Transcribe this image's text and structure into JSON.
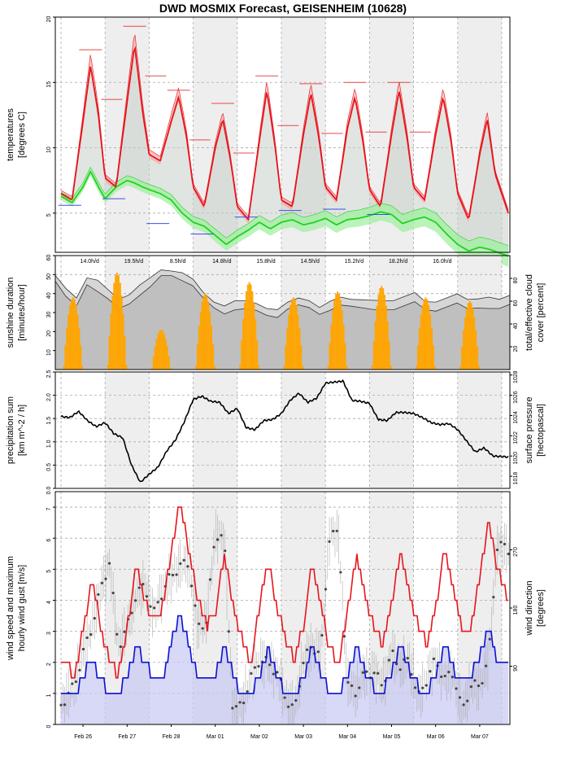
{
  "title": "DWD MOSMIX Forecast, GEISENHEIM (10628)",
  "x_axis": {
    "day_labels": [
      "Feb 26",
      "Feb 27",
      "Feb 28",
      "Mar 01",
      "Mar 02",
      "Mar 03",
      "Mar 04",
      "Mar 05",
      "Mar 06",
      "Mar 07"
    ]
  },
  "colors": {
    "temperature": "#e8141c",
    "dewpoint": "#1ed41e",
    "daily_max": "#e84848",
    "daily_min": "#3c50e6",
    "sunshine": "#ffa500",
    "wind_speed": "#0a10d2",
    "wind_gust": "#e8141c",
    "night_shade": "#eeeeee"
  },
  "chart_data": [
    {
      "type": "line",
      "panel": "temperature",
      "ylabel": "temperatures\n[degrees C]",
      "ylim": [
        2,
        20
      ],
      "yticks": [
        5,
        10,
        15,
        20
      ],
      "grid": true,
      "daily_max_temps": [
        17.5,
        19.3,
        14.4,
        13.4,
        15.5,
        14.9,
        15.0,
        15.0
      ],
      "daily_min_temps": [
        5.6,
        6.1,
        4.2,
        3.4,
        4.7,
        5.2,
        5.3,
        4.9
      ],
      "series": [
        {
          "name": "temperature",
          "x": [
            0,
            0.25,
            0.5,
            0.67,
            0.85,
            1.0,
            1.25,
            1.5,
            1.67,
            1.85,
            2.0,
            2.25,
            2.5,
            2.67,
            2.85,
            3.0,
            3.25,
            3.5,
            3.67,
            3.85,
            4.0,
            4.25,
            4.5,
            4.67,
            4.85,
            5.0,
            5.25,
            5.5,
            5.67,
            5.85,
            6.0,
            6.25,
            6.5,
            6.67,
            6.85,
            7.0,
            7.25,
            7.5,
            7.67,
            7.85,
            8.0,
            8.25,
            8.5,
            8.67,
            8.85,
            9.0,
            9.25,
            9.5,
            9.67,
            9.85,
            10.15
          ],
          "values": [
            6.5,
            6.0,
            12.0,
            16.3,
            12.5,
            7.7,
            7.0,
            13.5,
            17.9,
            12.8,
            9.5,
            9.0,
            12.0,
            13.9,
            10.8,
            7.0,
            5.5,
            10.0,
            12.2,
            9.0,
            5.5,
            4.5,
            10.5,
            14.4,
            10.3,
            6.0,
            5.5,
            11.0,
            14.2,
            10.8,
            7.0,
            6.0,
            11.5,
            13.9,
            10.5,
            6.8,
            5.5,
            11.0,
            14.4,
            10.8,
            7.0,
            6.0,
            11.0,
            13.9,
            10.5,
            6.5,
            4.5,
            9.5,
            12.2,
            8.0,
            5.0
          ]
        },
        {
          "name": "dewpoint",
          "x": [
            0,
            0.25,
            0.5,
            0.67,
            0.85,
            1.0,
            1.25,
            1.5,
            1.67,
            1.85,
            2.0,
            2.25,
            2.5,
            2.75,
            3.0,
            3.25,
            3.5,
            3.75,
            4.0,
            4.25,
            4.5,
            4.75,
            5.0,
            5.25,
            5.5,
            5.75,
            6.0,
            6.25,
            6.5,
            6.75,
            7.0,
            7.25,
            7.5,
            7.75,
            8.0,
            8.25,
            8.5,
            8.75,
            9.0,
            9.25,
            9.5,
            9.75,
            10.15
          ],
          "values": [
            6.3,
            5.8,
            7.0,
            8.2,
            7.0,
            6.1,
            7.0,
            7.5,
            7.3,
            7.0,
            6.8,
            6.5,
            6.0,
            5.0,
            4.3,
            4.0,
            3.3,
            2.6,
            3.2,
            3.7,
            4.3,
            3.8,
            4.3,
            4.5,
            4.1,
            4.3,
            4.6,
            4.1,
            4.5,
            4.6,
            4.8,
            5.1,
            4.9,
            4.2,
            4.5,
            4.7,
            4.3,
            3.4,
            2.6,
            2.1,
            2.4,
            2.2,
            1.7
          ]
        }
      ]
    },
    {
      "type": "bar",
      "panel": "sunshine",
      "ylabel": "sunshine duration\n[minutes/hour]",
      "y2label": "total/effective cloud\ncover [percent]",
      "ylim": [
        0,
        60
      ],
      "yticks": [
        10,
        20,
        30,
        40,
        50,
        60
      ],
      "y2ticks": [
        20,
        40,
        60,
        80
      ],
      "daily_sunshine_labels": [
        "14.0h/d",
        "19.5h/d",
        "8.5h/d",
        "14.8h/d",
        "15.8h/d",
        "14.5h/d",
        "15.2h/d",
        "18.2h/d",
        "16.0h/d"
      ],
      "daily_peak_minutes": [
        38,
        51,
        21,
        40,
        46,
        38,
        41,
        44,
        38,
        36
      ],
      "cloud_total_percent": [
        85,
        72,
        62,
        78,
        80,
        70,
        60,
        68,
        75,
        80,
        85,
        88,
        85,
        78,
        70,
        60,
        55,
        58,
        62,
        58,
        52,
        55,
        60,
        62,
        58,
        56,
        60,
        62,
        64,
        62,
        60,
        58,
        62,
        64,
        66,
        62,
        60,
        62,
        64,
        63,
        62,
        62,
        64,
        66
      ],
      "cloud_effective_percent": [
        80,
        65,
        55,
        72,
        70,
        62,
        52,
        60,
        66,
        72,
        80,
        84,
        78,
        72,
        65,
        55,
        48,
        50,
        55,
        52,
        46,
        48,
        54,
        56,
        52,
        50,
        52,
        55,
        58,
        55,
        52,
        50,
        54,
        56,
        58,
        55,
        52,
        54,
        56,
        55,
        54,
        52,
        56,
        58
      ]
    },
    {
      "type": "line",
      "panel": "pressure",
      "ylabel": "precipitation sum\n[km m^-2 / h]",
      "y2label": "surface pressure\n[hectopascal]",
      "ylim": [
        0,
        2.5
      ],
      "yticks": [
        0.0,
        0.5,
        1.0,
        1.5,
        2.0,
        2.5
      ],
      "y2ticks": [
        1018,
        1020,
        1022,
        1024,
        1026,
        1028
      ],
      "series": [
        {
          "name": "surface pressure",
          "x": [
            0,
            0.2,
            0.4,
            0.6,
            0.8,
            1.0,
            1.2,
            1.4,
            1.6,
            1.8,
            2.0,
            2.2,
            2.4,
            2.6,
            2.8,
            3.0,
            3.2,
            3.4,
            3.6,
            3.8,
            4.0,
            4.2,
            4.4,
            4.6,
            4.8,
            5.0,
            5.2,
            5.4,
            5.6,
            5.8,
            6.0,
            6.2,
            6.4,
            6.6,
            6.8,
            7.0,
            7.2,
            7.4,
            7.6,
            7.8,
            8.0,
            8.2,
            8.4,
            8.6,
            8.8,
            9.0,
            9.2,
            9.4,
            9.6,
            9.8,
            10.15
          ],
          "values": [
            1023.9,
            1023.8,
            1024.4,
            1023.5,
            1022.9,
            1023.3,
            1022.2,
            1021.8,
            1019.1,
            1017.4,
            1018.2,
            1018.9,
            1020.5,
            1021.6,
            1023.4,
            1025.6,
            1025.9,
            1025.4,
            1025.3,
            1024.2,
            1024.7,
            1022.8,
            1022.6,
            1023.5,
            1023.6,
            1024.2,
            1025.5,
            1026.2,
            1025.3,
            1025.7,
            1027.2,
            1027.3,
            1027.4,
            1025.5,
            1025.4,
            1025.2,
            1023.6,
            1023.5,
            1024.3,
            1024.3,
            1024.2,
            1023.8,
            1023.3,
            1023.1,
            1023.2,
            1022.6,
            1021.5,
            1020.4,
            1020.8,
            1020.0,
            1019.9
          ]
        }
      ]
    },
    {
      "type": "line",
      "panel": "wind",
      "ylabel": "wind speed and maximum\nhourly wind gust [m/s]",
      "y2label": "wind direction\n[degrees]",
      "ylim": [
        0,
        7.5
      ],
      "yticks": [
        0,
        1,
        2,
        3,
        4,
        5,
        6,
        7
      ],
      "y2ticks": [
        90,
        180,
        270
      ],
      "series": [
        {
          "name": "wind gust",
          "x": [
            0,
            0.3,
            0.5,
            0.7,
            0.9,
            1.1,
            1.3,
            1.5,
            1.7,
            1.9,
            2.1,
            2.3,
            2.5,
            2.7,
            2.9,
            3.1,
            3.3,
            3.5,
            3.7,
            3.9,
            4.1,
            4.3,
            4.5,
            4.7,
            4.9,
            5.1,
            5.3,
            5.5,
            5.7,
            5.9,
            6.1,
            6.3,
            6.5,
            6.7,
            6.9,
            7.1,
            7.3,
            7.5,
            7.7,
            7.9,
            8.1,
            8.3,
            8.5,
            8.7,
            8.9,
            9.1,
            9.3,
            9.5,
            9.7,
            9.9,
            10.15
          ],
          "values": [
            2.1,
            1.6,
            3.0,
            4.7,
            3.2,
            2.0,
            1.6,
            3.0,
            5.3,
            4.0,
            3.4,
            3.8,
            5.6,
            7.2,
            5.5,
            4.1,
            3.2,
            3.5,
            5.5,
            3.8,
            2.8,
            1.9,
            3.8,
            5.2,
            3.8,
            2.8,
            2.0,
            3.2,
            5.2,
            3.8,
            2.4,
            2.0,
            3.6,
            5.4,
            4.1,
            3.2,
            2.6,
            3.8,
            5.6,
            4.3,
            3.2,
            2.6,
            3.8,
            5.6,
            4.4,
            3.1,
            3.1,
            4.8,
            6.6,
            5.0,
            4.1
          ]
        },
        {
          "name": "wind speed",
          "x": [
            0,
            0.3,
            0.5,
            0.7,
            0.9,
            1.1,
            1.3,
            1.5,
            1.7,
            1.9,
            2.1,
            2.3,
            2.5,
            2.7,
            2.9,
            3.1,
            3.3,
            3.5,
            3.7,
            3.9,
            4.1,
            4.3,
            4.5,
            4.7,
            4.9,
            5.1,
            5.3,
            5.5,
            5.7,
            5.9,
            6.1,
            6.3,
            6.5,
            6.7,
            6.9,
            7.1,
            7.3,
            7.5,
            7.7,
            7.9,
            8.1,
            8.3,
            8.5,
            8.7,
            8.9,
            9.1,
            9.3,
            9.5,
            9.7,
            9.9,
            10.15
          ],
          "values": [
            1.0,
            1.0,
            1.5,
            2.1,
            1.5,
            1.0,
            1.0,
            1.5,
            2.5,
            2.0,
            1.5,
            1.5,
            2.6,
            3.6,
            2.5,
            1.5,
            1.3,
            1.6,
            2.5,
            1.6,
            1.0,
            1.0,
            1.5,
            2.5,
            1.6,
            1.0,
            1.0,
            1.5,
            2.5,
            1.7,
            1.0,
            1.0,
            1.5,
            2.5,
            1.7,
            1.2,
            1.1,
            1.6,
            2.6,
            1.8,
            1.2,
            1.1,
            1.6,
            2.6,
            1.8,
            1.5,
            1.5,
            2.3,
            3.1,
            2.1,
            2.1
          ]
        },
        {
          "name": "wind direction",
          "x": [
            0,
            0.3,
            0.5,
            0.7,
            0.9,
            1.1,
            1.3,
            1.5,
            1.7,
            1.9,
            2.1,
            2.3,
            2.5,
            2.7,
            2.9,
            3.1,
            3.3,
            3.5,
            3.7,
            3.9,
            4.1,
            4.3,
            4.5,
            4.7,
            4.9,
            5.1,
            5.3,
            5.5,
            5.7,
            5.9,
            6.1,
            6.3,
            6.5,
            6.7,
            6.9,
            7.1,
            7.3,
            7.5,
            7.7,
            7.9,
            8.1,
            8.3,
            8.5,
            8.7,
            8.9,
            9.1,
            9.3,
            9.5,
            9.7,
            9.9,
            10.15
          ],
          "values": [
            30,
            60,
            110,
            150,
            210,
            250,
            120,
            150,
            200,
            215,
            170,
            205,
            230,
            245,
            250,
            150,
            160,
            295,
            290,
            20,
            30,
            70,
            100,
            95,
            80,
            40,
            20,
            100,
            120,
            110,
            300,
            290,
            60,
            50,
            80,
            80,
            60,
            110,
            90,
            100,
            40,
            70,
            100,
            70,
            80,
            20,
            60,
            60,
            100,
            280,
            270
          ]
        }
      ]
    }
  ]
}
